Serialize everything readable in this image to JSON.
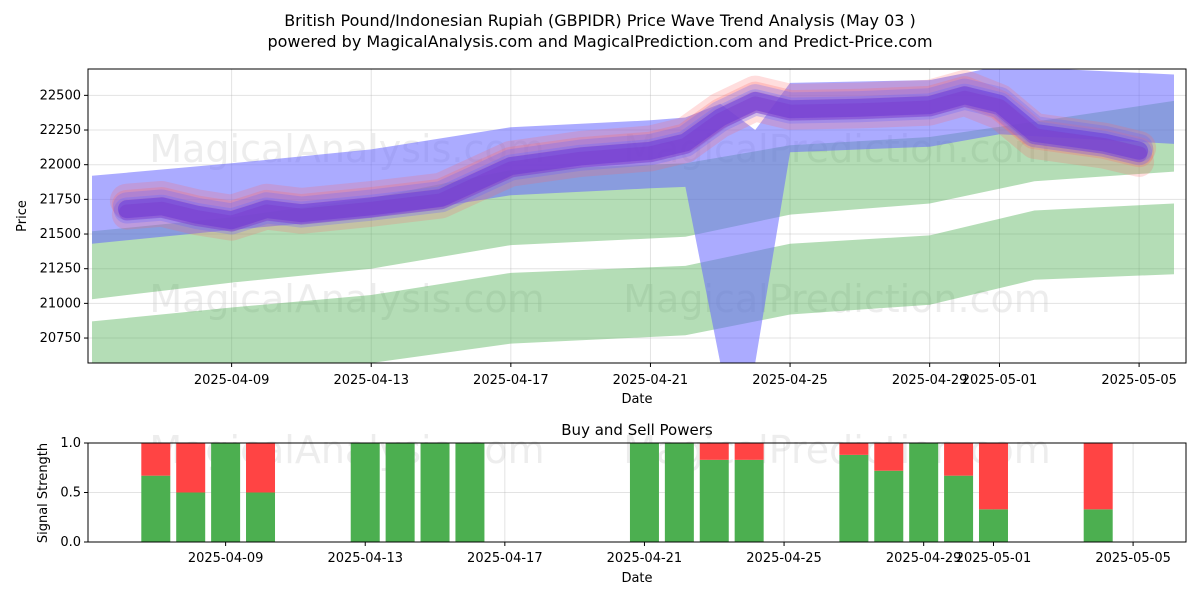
{
  "figure": {
    "title_line1": "British Pound/Indonesian Rupiah (GBPIDR) Price Wave Trend Analysis (May 03 )",
    "title_line2": "powered by MagicalAnalysis.com and MagicalPrediction.com and Predict-Price.com",
    "watermarks": [
      "MagicalAnalysis.com",
      "MagicalPrediction.com"
    ]
  },
  "chart_data": [
    {
      "type": "area",
      "title": "",
      "xlabel": "Date",
      "ylabel": "Price",
      "x_tick_labels": [
        "2025-04-09",
        "2025-04-13",
        "2025-04-17",
        "2025-04-21",
        "2025-04-25",
        "2025-04-29",
        "2025-05-01",
        "2025-05-05"
      ],
      "x_tick_dates": [
        "2025-04-09",
        "2025-04-13",
        "2025-04-17",
        "2025-04-21",
        "2025-04-25",
        "2025-04-29",
        "2025-05-01",
        "2025-05-05"
      ],
      "y_ticks": [
        20750,
        21000,
        21250,
        21500,
        21750,
        22000,
        22250,
        22500
      ],
      "xlim": [
        "2025-04-05",
        "2025-05-06"
      ],
      "ylim": [
        20570,
        22690
      ],
      "grid": true,
      "colors": {
        "green_band": "#4caf50",
        "blue_band": "#6666ff",
        "red_band": "#ff6666",
        "purple_wave": "#5a2ee0"
      },
      "bands": [
        {
          "color": "green",
          "x": [
            "2025-04-05",
            "2025-04-09",
            "2025-04-13",
            "2025-04-17",
            "2025-04-22",
            "2025-04-25",
            "2025-04-29",
            "2025-05-02",
            "2025-05-06"
          ],
          "upper": [
            21520,
            21620,
            21760,
            21960,
            22010,
            22140,
            22200,
            22310,
            22460
          ],
          "lower": [
            21030,
            21150,
            21250,
            21420,
            21480,
            21640,
            21720,
            21880,
            21950
          ]
        },
        {
          "color": "green",
          "x": [
            "2025-04-05",
            "2025-04-09",
            "2025-04-13",
            "2025-04-17",
            "2025-04-22",
            "2025-04-25",
            "2025-04-29",
            "2025-05-02",
            "2025-05-06"
          ],
          "upper": [
            20870,
            20970,
            21060,
            21220,
            21270,
            21430,
            21490,
            21670,
            21720
          ],
          "lower": [
            20400,
            20500,
            20570,
            20710,
            20770,
            20920,
            20990,
            21170,
            21210
          ]
        },
        {
          "color": "blue",
          "x": [
            "2025-04-05",
            "2025-04-09",
            "2025-04-13",
            "2025-04-17",
            "2025-04-21",
            "2025-04-22",
            "2025-04-23",
            "2025-04-24",
            "2025-04-25",
            "2025-04-29",
            "2025-05-01",
            "2025-05-06"
          ],
          "upper": [
            21920,
            22010,
            22110,
            22270,
            22320,
            22340,
            22440,
            22250,
            22590,
            22610,
            22710,
            22650
          ],
          "lower": [
            21430,
            21530,
            21620,
            21780,
            21830,
            21840,
            20570,
            20570,
            22090,
            22130,
            22220,
            22150
          ]
        }
      ],
      "wave_path": {
        "x": [
          "2025-04-06",
          "2025-04-07",
          "2025-04-08",
          "2025-04-09",
          "2025-04-10",
          "2025-04-11",
          "2025-04-13",
          "2025-04-15",
          "2025-04-17",
          "2025-04-19",
          "2025-04-21",
          "2025-04-22",
          "2025-04-23",
          "2025-04-24",
          "2025-04-25",
          "2025-04-27",
          "2025-04-29",
          "2025-04-30",
          "2025-05-01",
          "2025-05-02",
          "2025-05-04",
          "2025-05-05"
        ],
        "y": [
          21680,
          21700,
          21640,
          21600,
          21680,
          21650,
          21700,
          21760,
          21990,
          22060,
          22100,
          22160,
          22340,
          22460,
          22400,
          22410,
          22430,
          22500,
          22440,
          22230,
          22160,
          22100
        ]
      }
    },
    {
      "type": "bar",
      "title": "Buy and Sell Powers",
      "xlabel": "Date",
      "ylabel": "Signal Strength",
      "x_tick_labels": [
        "2025-04-09",
        "2025-04-13",
        "2025-04-17",
        "2025-04-21",
        "2025-04-25",
        "2025-04-29",
        "2025-05-01",
        "2025-05-05"
      ],
      "y_ticks": [
        "0.0",
        "0.5",
        "1.0"
      ],
      "ylim": [
        0,
        1
      ],
      "grid": true,
      "colors": {
        "buy": "#4caf50",
        "sell": "#ff4444"
      },
      "series": [
        {
          "dates": [
            "2025-04-07",
            "2025-04-08",
            "2025-04-09",
            "2025-04-10",
            "2025-04-13",
            "2025-04-14",
            "2025-04-15",
            "2025-04-16",
            "2025-04-21",
            "2025-04-22",
            "2025-04-23",
            "2025-04-24",
            "2025-04-27",
            "2025-04-28",
            "2025-04-29",
            "2025-04-30",
            "2025-05-01",
            "2025-05-04"
          ],
          "buy": [
            0.67,
            0.5,
            1.0,
            0.5,
            1.0,
            1.0,
            1.0,
            1.0,
            1.0,
            1.0,
            0.83,
            0.83,
            0.88,
            0.72,
            1.0,
            0.67,
            0.33,
            0.33
          ],
          "sell": [
            0.33,
            0.5,
            0.0,
            0.5,
            0.0,
            0.0,
            0.0,
            0.0,
            0.0,
            0.0,
            0.17,
            0.17,
            0.12,
            0.28,
            0.0,
            0.33,
            0.67,
            0.67
          ]
        }
      ]
    }
  ]
}
